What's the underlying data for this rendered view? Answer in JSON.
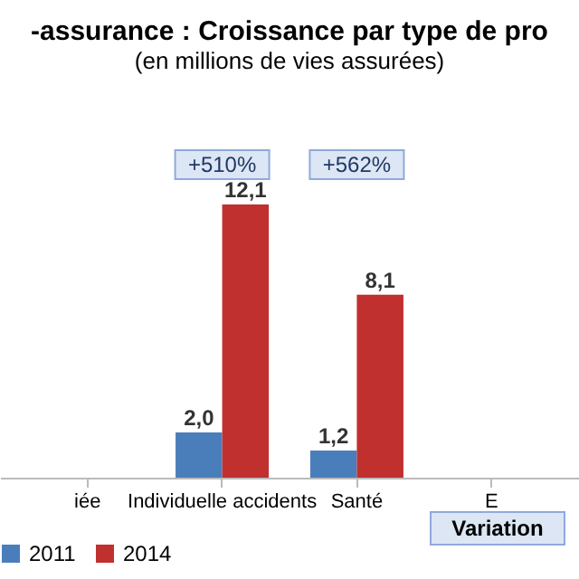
{
  "chart_data": {
    "type": "bar",
    "title": "-assurance  : Croissance  par type de pro",
    "subtitle": "(en millions  de vies assurées)",
    "categories": [
      "iée",
      "Individuelle accidents",
      "Santé",
      "E"
    ],
    "series": [
      {
        "name": "2011",
        "color": "#4a7ebb",
        "values": [
          null,
          2.0,
          1.2,
          null
        ],
        "value_labels": [
          null,
          "2,0",
          "1,2",
          null
        ]
      },
      {
        "name": "2014",
        "color": "#c0302f",
        "values": [
          null,
          12.1,
          8.1,
          null
        ],
        "value_labels": [
          null,
          "12,1",
          "8,1",
          null
        ]
      }
    ],
    "annotations": [
      "+510%",
      "+562%",
      "Variation"
    ],
    "legend": "bottom",
    "grid": false
  }
}
